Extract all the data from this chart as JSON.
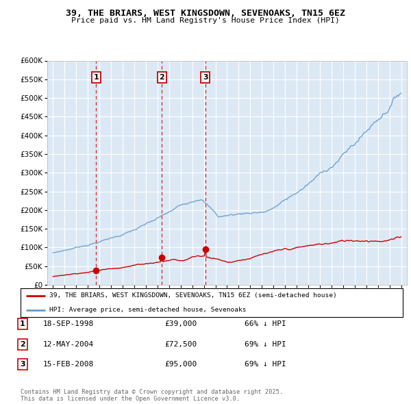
{
  "title": "39, THE BRIARS, WEST KINGSDOWN, SEVENOAKS, TN15 6EZ",
  "subtitle": "Price paid vs. HM Land Registry's House Price Index (HPI)",
  "ylim": [
    0,
    600000
  ],
  "yticks": [
    0,
    50000,
    100000,
    150000,
    200000,
    250000,
    300000,
    350000,
    400000,
    450000,
    500000,
    550000,
    600000
  ],
  "ytick_labels": [
    "£0",
    "£50K",
    "£100K",
    "£150K",
    "£200K",
    "£250K",
    "£300K",
    "£350K",
    "£400K",
    "£450K",
    "£500K",
    "£550K",
    "£600K"
  ],
  "background_color": "#dce9f5",
  "grid_color": "#ffffff",
  "hpi_line_color": "#6699cc",
  "price_line_color": "#cc0000",
  "dashed_line_color": "#cc0000",
  "sale_points": [
    {
      "date_val": 1998.72,
      "price": 39000,
      "label": "1"
    },
    {
      "date_val": 2004.37,
      "price": 72500,
      "label": "2"
    },
    {
      "date_val": 2008.12,
      "price": 95000,
      "label": "3"
    }
  ],
  "sale_info": [
    {
      "num": "1",
      "date": "18-SEP-1998",
      "price": "£39,000",
      "hpi": "66% ↓ HPI"
    },
    {
      "num": "2",
      "date": "12-MAY-2004",
      "price": "£72,500",
      "hpi": "69% ↓ HPI"
    },
    {
      "num": "3",
      "date": "15-FEB-2008",
      "price": "£95,000",
      "hpi": "69% ↓ HPI"
    }
  ],
  "legend_label_red": "39, THE BRIARS, WEST KINGSDOWN, SEVENOAKS, TN15 6EZ (semi-detached house)",
  "legend_label_blue": "HPI: Average price, semi-detached house, Sevenoaks",
  "footer": "Contains HM Land Registry data © Crown copyright and database right 2025.\nThis data is licensed under the Open Government Licence v3.0.",
  "xlim_start": 1994.5,
  "xlim_end": 2025.5
}
